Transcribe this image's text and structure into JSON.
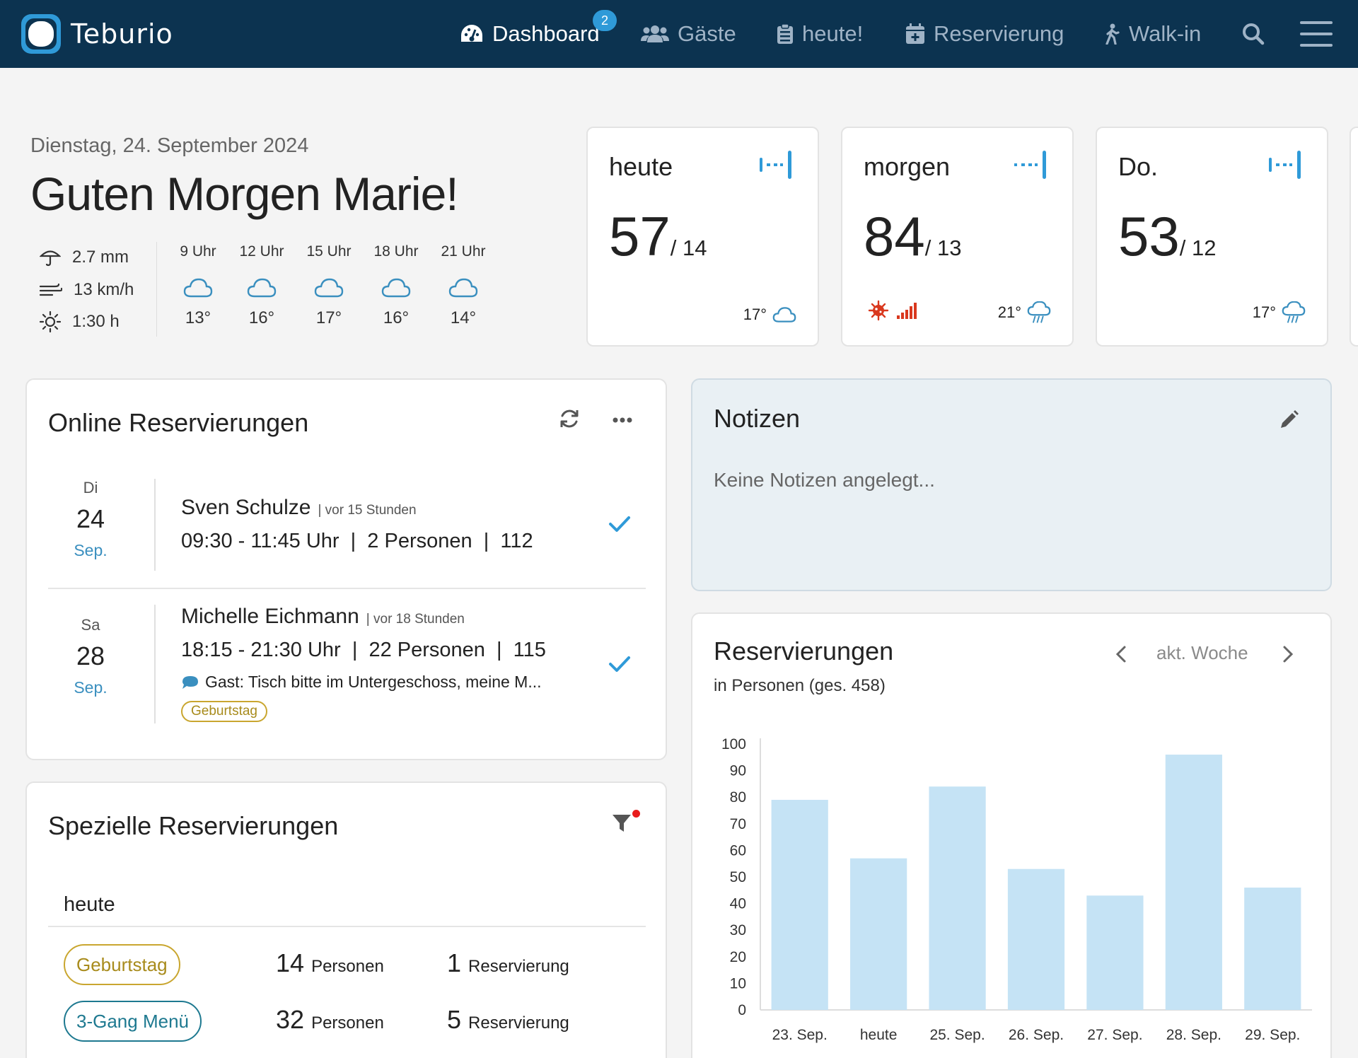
{
  "app": {
    "name": "Teburio"
  },
  "nav": {
    "items": [
      {
        "label": "Dashboard",
        "badge": "2"
      },
      {
        "label": "Gäste"
      },
      {
        "label": "heute!"
      },
      {
        "label": "Reservierung"
      },
      {
        "label": "Walk-in"
      }
    ]
  },
  "header": {
    "date": "Dienstag, 24. September 2024",
    "greeting": "Guten Morgen Marie!"
  },
  "weather": {
    "rain": "2.7 mm",
    "wind": "13 km/h",
    "sun": "1:30 h",
    "hours": [
      {
        "label": "9 Uhr",
        "temp": "13°"
      },
      {
        "label": "12 Uhr",
        "temp": "16°"
      },
      {
        "label": "15 Uhr",
        "temp": "17°"
      },
      {
        "label": "18 Uhr",
        "temp": "16°"
      },
      {
        "label": "21 Uhr",
        "temp": "14°"
      }
    ]
  },
  "forecast": [
    {
      "day": "heute",
      "persons": "57",
      "reservations": "/ 14",
      "temp": "17°",
      "icon": "cloud-icon"
    },
    {
      "day": "morgen",
      "persons": "84",
      "reservations": "/ 13",
      "temp": "21°",
      "icon": "cloud-rain-icon",
      "alerts": [
        "virus-icon",
        "signal-bars-icon"
      ]
    },
    {
      "day": "Do.",
      "persons": "53",
      "reservations": "/ 12",
      "temp": "17°",
      "icon": "cloud-rain-icon"
    }
  ],
  "online": {
    "title": "Online Reservierungen",
    "items": [
      {
        "dow": "Di",
        "day": "24",
        "month": "Sep.",
        "name": "Sven Schulze",
        "ago": "| vor 15 Stunden",
        "info": "09:30 - 11:45 Uhr  |  2 Personen  |  112"
      },
      {
        "dow": "Sa",
        "day": "28",
        "month": "Sep.",
        "name": "Michelle Eichmann",
        "ago": "| vor 18 Stunden",
        "info": "18:15 - 21:30 Uhr  |  22 Personen  |  115",
        "note": "Gast: Tisch bitte im Untergeschoss, meine M...",
        "tag": "Geburtstag"
      }
    ]
  },
  "notes": {
    "title": "Notizen",
    "empty": "Keine Notizen angelegt..."
  },
  "special": {
    "title": "Spezielle Reservierungen",
    "section": "heute",
    "rows": [
      {
        "tag": "Geburtstag",
        "persons": "14",
        "persons_label": "Personen",
        "res": "1",
        "res_label": "Reservierung"
      },
      {
        "tag": "3-Gang Menü",
        "persons": "32",
        "persons_label": "Personen",
        "res": "5",
        "res_label": "Reservierung"
      }
    ]
  },
  "reservations_chart": {
    "title": "Reservierungen",
    "subtitle": "in Personen (ges. 458)",
    "period": "akt. Woche"
  },
  "chart_data": {
    "type": "bar",
    "categories": [
      "23. Sep.",
      "heute",
      "25. Sep.",
      "26. Sep.",
      "27. Sep.",
      "28. Sep.",
      "29. Sep."
    ],
    "values": [
      79,
      57,
      84,
      53,
      43,
      96,
      46
    ],
    "ylim": [
      0,
      100
    ],
    "yticks": [
      0,
      10,
      20,
      30,
      40,
      50,
      60,
      70,
      80,
      90,
      100
    ],
    "grid": false,
    "color": "#c5e3f5"
  },
  "colors": {
    "navbar": "#0c3350",
    "accent": "#2f9ad8",
    "gold": "#c9a62f",
    "teal": "#1e7990",
    "alert": "#d9381e"
  }
}
